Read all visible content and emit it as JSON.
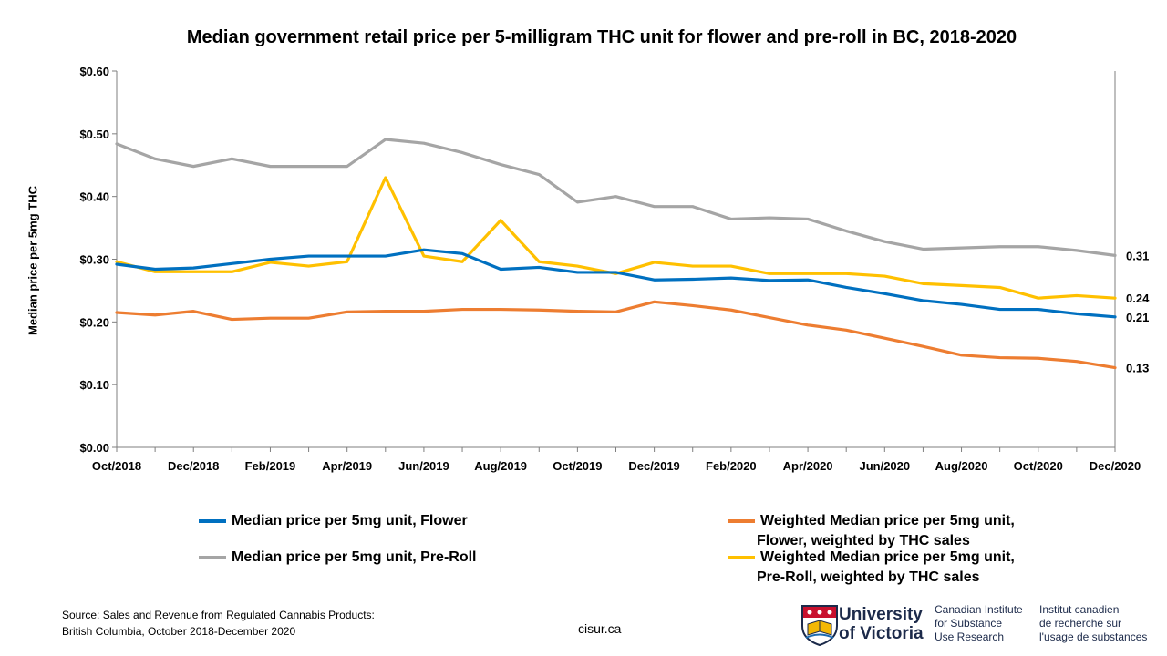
{
  "chart_data": {
    "type": "line",
    "title": "Median government retail price per 5-milligram THC unit for flower and pre-roll in BC, 2018-2020",
    "ylabel": "Median price per 5mg THC",
    "xlabel": "",
    "ylim": [
      0,
      0.6
    ],
    "y_ticks": [
      "$0.00",
      "$0.10",
      "$0.20",
      "$0.30",
      "$0.40",
      "$0.50",
      "$0.60"
    ],
    "x_tick_labels": [
      "Oct/2018",
      "Dec/2018",
      "Feb/2019",
      "Apr/2019",
      "Jun/2019",
      "Aug/2019",
      "Oct/2019",
      "Dec/2019",
      "Feb/2020",
      "Apr/2020",
      "Jun/2020",
      "Aug/2020",
      "Oct/2020",
      "Dec/2020"
    ],
    "x": [
      "Oct/2018",
      "Nov/2018",
      "Dec/2018",
      "Jan/2019",
      "Feb/2019",
      "Mar/2019",
      "Apr/2019",
      "May/2019",
      "Jun/2019",
      "Jul/2019",
      "Aug/2019",
      "Sep/2019",
      "Oct/2019",
      "Nov/2019",
      "Dec/2019",
      "Jan/2020",
      "Feb/2020",
      "Mar/2020",
      "Apr/2020",
      "May/2020",
      "Jun/2020",
      "Jul/2020",
      "Aug/2020",
      "Sep/2020",
      "Oct/2020",
      "Nov/2020",
      "Dec/2020"
    ],
    "grid": false,
    "series": [
      {
        "name": "Median price per 5mg unit, Pre-Roll",
        "color": "#a5a5a5",
        "values": [
          0.484,
          0.46,
          0.448,
          0.46,
          0.448,
          0.448,
          0.448,
          0.491,
          0.485,
          0.47,
          0.451,
          0.435,
          0.391,
          0.4,
          0.384,
          0.384,
          0.364,
          0.366,
          0.364,
          0.345,
          0.328,
          0.316,
          0.318,
          0.32,
          0.32,
          0.314,
          0.306
        ],
        "end_label": "0.31"
      },
      {
        "name": "Weighted Median price per 5mg unit, Pre-Roll, weighted by THC sales",
        "color": "#ffc000",
        "values": [
          0.296,
          0.28,
          0.28,
          0.28,
          0.295,
          0.289,
          0.296,
          0.43,
          0.305,
          0.296,
          0.362,
          0.296,
          0.289,
          0.277,
          0.295,
          0.289,
          0.289,
          0.277,
          0.277,
          0.277,
          0.273,
          0.261,
          0.258,
          0.255,
          0.238,
          0.242,
          0.238
        ],
        "end_label": "0.24"
      },
      {
        "name": "Median price per 5mg unit, Flower",
        "color": "#0070c0",
        "values": [
          0.292,
          0.284,
          0.286,
          0.293,
          0.3,
          0.305,
          0.305,
          0.305,
          0.315,
          0.309,
          0.284,
          0.287,
          0.279,
          0.279,
          0.267,
          0.268,
          0.27,
          0.266,
          0.267,
          0.255,
          0.245,
          0.234,
          0.228,
          0.22,
          0.22,
          0.213,
          0.208
        ],
        "end_label": "0.21"
      },
      {
        "name": "Weighted Median price per 5mg unit, Flower, weighted by THC sales",
        "color": "#ed7d31",
        "values": [
          0.215,
          0.211,
          0.217,
          0.204,
          0.206,
          0.206,
          0.216,
          0.217,
          0.217,
          0.22,
          0.22,
          0.219,
          0.217,
          0.216,
          0.232,
          0.226,
          0.219,
          0.207,
          0.195,
          0.187,
          0.174,
          0.161,
          0.147,
          0.143,
          0.142,
          0.137,
          0.127
        ],
        "end_label": "0.13"
      }
    ]
  },
  "legend": {
    "flower": "Median price per 5mg unit, Flower",
    "preroll": "Median price per 5mg unit, Pre-Roll",
    "weighted_flower_1": "Weighted Median price per 5mg unit,",
    "weighted_flower_2": "Flower, weighted by THC sales",
    "weighted_preroll_1": "Weighted Median price per 5mg unit,",
    "weighted_preroll_2": "Pre-Roll, weighted by THC sales"
  },
  "footer": {
    "source_line1": "Source: Sales and Revenue from Regulated Cannabis Products:",
    "source_line2": "British Columbia, October 2018-December 2020",
    "site": "cisur.ca",
    "uvic_line1": "University",
    "uvic_line2": "of Victoria",
    "inst_en_1": "Canadian Institute",
    "inst_en_2": "for Substance",
    "inst_en_3": "Use Research",
    "inst_fr_1": "Institut canadien",
    "inst_fr_2": "de recherche sur",
    "inst_fr_3": "l'usage de substances"
  },
  "colors": {
    "preroll": "#a5a5a5",
    "weighted_preroll": "#ffc000",
    "flower": "#0070c0",
    "weighted_flower": "#ed7d31"
  }
}
